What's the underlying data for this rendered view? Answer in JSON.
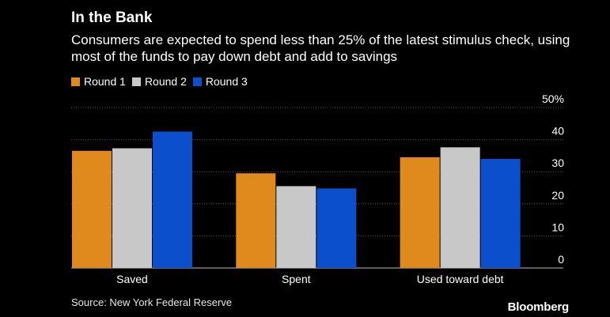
{
  "colors": {
    "background": "#000000",
    "text": "#ffffff",
    "grid": "#555555"
  },
  "header": {
    "title": "In the Bank",
    "subtitle": "Consumers are expected to spend less than 25% of the latest stimulus check, using most of the funds to pay down debt and add to savings"
  },
  "footer": {
    "source": "Source: New York Federal Reserve",
    "brand": "Bloomberg"
  },
  "chart_data": {
    "type": "bar",
    "categories": [
      "Saved",
      "Spent",
      "Used toward debt"
    ],
    "series": [
      {
        "name": "Round 1",
        "color": "#e08a1e",
        "values": [
          36.5,
          29.5,
          34.5
        ]
      },
      {
        "name": "Round 2",
        "color": "#c8c8c8",
        "values": [
          37.3,
          25.5,
          37.6
        ]
      },
      {
        "name": "Round 3",
        "color": "#0b4fcc",
        "values": [
          42.5,
          24.8,
          34.0
        ]
      }
    ],
    "yticks": [
      "50%",
      "40",
      "30",
      "20",
      "10",
      "0"
    ],
    "ylim": [
      0,
      50
    ],
    "grid": true,
    "legend": "top-left"
  }
}
